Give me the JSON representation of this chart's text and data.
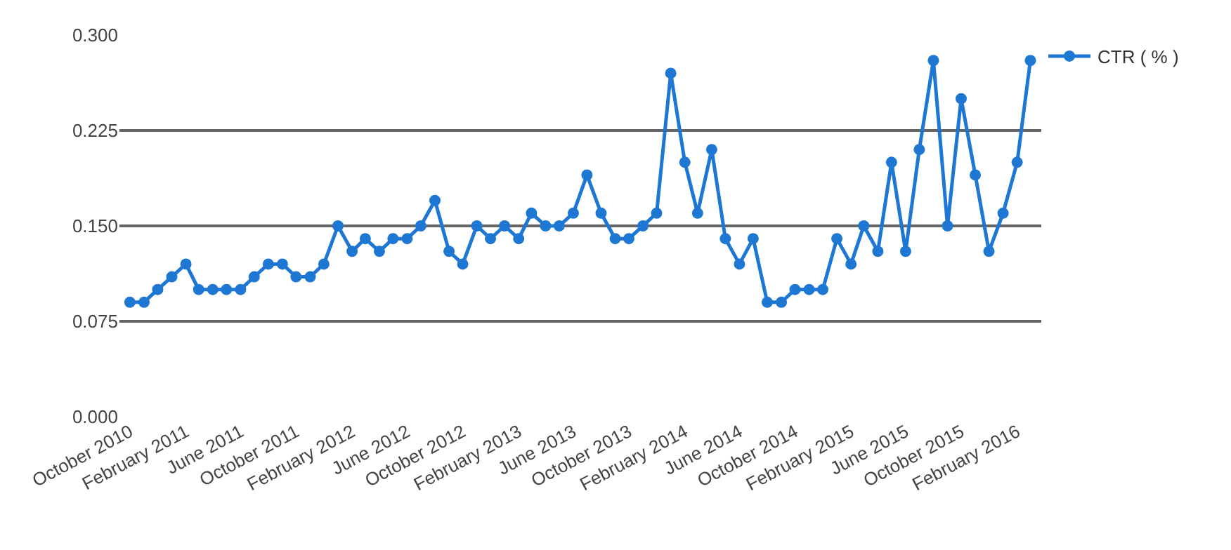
{
  "chart_data": {
    "type": "line",
    "x": [
      "2010-10",
      "2010-11",
      "2010-12",
      "2011-01",
      "2011-02",
      "2011-03",
      "2011-04",
      "2011-05",
      "2011-06",
      "2011-07",
      "2011-08",
      "2011-09",
      "2011-10",
      "2011-11",
      "2011-12",
      "2012-01",
      "2012-02",
      "2012-03",
      "2012-04",
      "2012-05",
      "2012-06",
      "2012-07",
      "2012-08",
      "2012-09",
      "2012-10",
      "2012-11",
      "2012-12",
      "2013-01",
      "2013-02",
      "2013-03",
      "2013-04",
      "2013-05",
      "2013-06",
      "2013-07",
      "2013-08",
      "2013-09",
      "2013-10",
      "2013-11",
      "2013-12",
      "2014-01",
      "2014-02",
      "2014-03",
      "2014-04",
      "2014-05",
      "2014-06",
      "2014-07",
      "2014-08",
      "2014-09",
      "2014-10",
      "2014-11",
      "2014-12",
      "2015-01",
      "2015-02",
      "2015-03",
      "2015-04",
      "2015-05",
      "2015-06",
      "2015-07",
      "2015-08",
      "2015-09",
      "2015-10",
      "2015-11",
      "2015-12",
      "2016-01",
      "2016-02",
      "2016-03"
    ],
    "series": [
      {
        "name": "CTR ( % )",
        "color": "#1f77d4",
        "values": [
          0.09,
          0.09,
          0.1,
          0.11,
          0.12,
          0.1,
          0.1,
          0.1,
          0.1,
          0.11,
          0.12,
          0.12,
          0.11,
          0.11,
          0.12,
          0.15,
          0.13,
          0.14,
          0.13,
          0.14,
          0.14,
          0.15,
          0.17,
          0.13,
          0.12,
          0.15,
          0.14,
          0.15,
          0.14,
          0.16,
          0.15,
          0.15,
          0.16,
          0.19,
          0.16,
          0.14,
          0.14,
          0.15,
          0.16,
          0.27,
          0.2,
          0.16,
          0.21,
          0.14,
          0.12,
          0.14,
          0.09,
          0.09,
          0.1,
          0.1,
          0.1,
          0.14,
          0.12,
          0.15,
          0.13,
          0.2,
          0.13,
          0.21,
          0.28,
          0.15,
          0.25,
          0.19,
          0.13,
          0.16,
          0.2,
          0.28
        ]
      }
    ],
    "xlim": [
      "2010-09-08",
      "2016-03-25"
    ],
    "xticks": [
      {
        "value": "2010-10",
        "label": "October 2010"
      },
      {
        "value": "2011-02",
        "label": "February 2011"
      },
      {
        "value": "2011-06",
        "label": "June 2011"
      },
      {
        "value": "2011-10",
        "label": "October 2011"
      },
      {
        "value": "2012-02",
        "label": "February 2012"
      },
      {
        "value": "2012-06",
        "label": "June 2012"
      },
      {
        "value": "2012-10",
        "label": "October 2012"
      },
      {
        "value": "2013-02",
        "label": "February 2013"
      },
      {
        "value": "2013-06",
        "label": "June 2013"
      },
      {
        "value": "2013-10",
        "label": "October 2013"
      },
      {
        "value": "2014-02",
        "label": "February 2014"
      },
      {
        "value": "2014-06",
        "label": "June 2014"
      },
      {
        "value": "2014-10",
        "label": "October 2014"
      },
      {
        "value": "2015-02",
        "label": "February 2015"
      },
      {
        "value": "2015-06",
        "label": "June 2015"
      },
      {
        "value": "2015-10",
        "label": "October 2015"
      },
      {
        "value": "2016-02",
        "label": "February 2016"
      }
    ],
    "ylim": [
      0,
      0.3
    ],
    "yticks": [
      {
        "value": 0,
        "label": "0.000"
      },
      {
        "value": 0.075,
        "label": "0.075"
      },
      {
        "value": 0.15,
        "label": "0.150"
      },
      {
        "value": 0.225,
        "label": "0.225"
      },
      {
        "value": 0.3,
        "label": "0.300"
      }
    ],
    "grid": "y",
    "legend": "top right",
    "marker": "circle",
    "line_style": "solid"
  }
}
